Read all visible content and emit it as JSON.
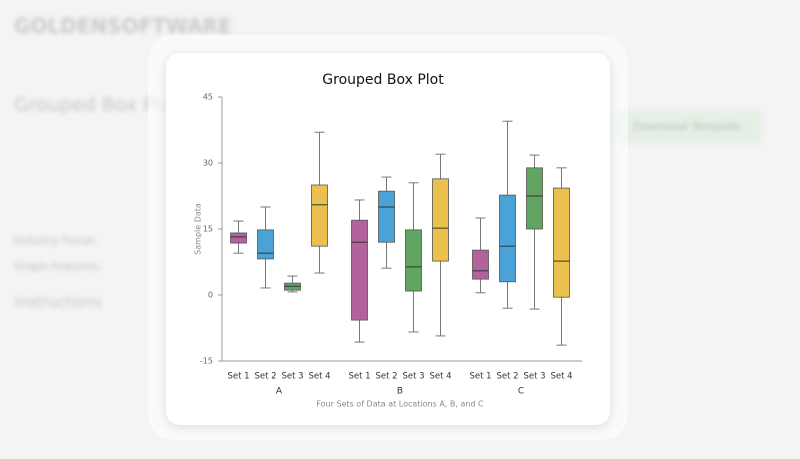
{
  "background": {
    "logo": "GOLDENSOFTWARE",
    "heading": "Grouped Box Plot",
    "instructions": "Instructions",
    "button": "Download Template",
    "focus": "Industry Focus:",
    "features": "Graph Features:"
  },
  "chart_data": {
    "type": "box",
    "title": "Grouped Box Plot",
    "x_label": "Four Sets of Data at Locations A, B, and C",
    "y_label": "Sample Data",
    "categories": [
      "A",
      "B",
      "C"
    ],
    "ylim": [
      -15,
      45
    ],
    "yticks": [
      -15,
      0,
      15,
      30,
      45
    ],
    "series": [
      {
        "name": "Set 1",
        "color": "#b2629c",
        "min": [
          9.5,
          -10.7,
          0.5
        ],
        "q1": [
          11.8,
          -5.7,
          3.6
        ],
        "median": [
          13.2,
          12,
          5.5
        ],
        "q3": [
          14.1,
          17,
          10.2
        ],
        "max": [
          16.8,
          21.6,
          17.5
        ]
      },
      {
        "name": "Set 2",
        "color": "#4aa3d6",
        "min": [
          1.6,
          6.1,
          -3
        ],
        "q1": [
          8.2,
          12,
          3
        ],
        "median": [
          9.5,
          20,
          11.1
        ],
        "q3": [
          14.8,
          23.6,
          22.7
        ],
        "max": [
          20,
          26.8,
          39.5
        ]
      },
      {
        "name": "Set 3",
        "color": "#62a562",
        "min": [
          0.7,
          -8.4,
          -3.2
        ],
        "q1": [
          1.1,
          0.9,
          15
        ],
        "median": [
          2,
          6.4,
          22.5
        ],
        "q3": [
          2.7,
          14.8,
          28.9
        ],
        "max": [
          4.3,
          25.5,
          31.8
        ]
      },
      {
        "name": "Set 4",
        "color": "#ecc04c",
        "min": [
          5,
          -9.3,
          -11.4
        ],
        "q1": [
          11.1,
          7.7,
          -0.5
        ],
        "median": [
          20.5,
          15.2,
          7.7
        ],
        "q3": [
          25,
          26.4,
          24.3
        ],
        "max": [
          37,
          32,
          28.9
        ]
      }
    ]
  }
}
